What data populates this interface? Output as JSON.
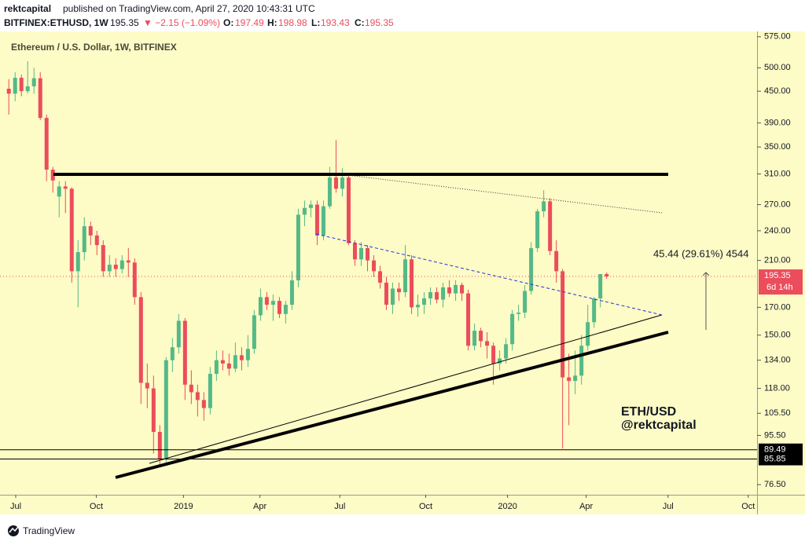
{
  "header": {
    "author": "rektcapital",
    "published": "published on TradingView.com, April 27, 2020 10:43:31 UTC",
    "symbol": "BITFINEX:ETHUSD, 1W",
    "change": "▼ −2.15 (−1.09%)",
    "o": "O:",
    "h": "H:",
    "l": "L:",
    "c": "C:"
  },
  "chart_data": {
    "type": "candlestick",
    "title": "Ethereum / U.S. Dollar, 1W, BITFINEX",
    "open": [
      455,
      445,
      478,
      450,
      460,
      477,
      399,
      316,
      280,
      293,
      290,
      200,
      218,
      245,
      235,
      225,
      200,
      206,
      202,
      210,
      208,
      178,
      121,
      118,
      97,
      86,
      134,
      142,
      160,
      120,
      116,
      112,
      108,
      126,
      134,
      132,
      129,
      137,
      134,
      141,
      164,
      178,
      172,
      175,
      165,
      172,
      192,
      258,
      266,
      270,
      235,
      268,
      305,
      290,
      305,
      227,
      211,
      222,
      210,
      200,
      190,
      172,
      185,
      182,
      211,
      170,
      172,
      177,
      182,
      176,
      186,
      181,
      188,
      181,
      143,
      153,
      146,
      143,
      132,
      135,
      144,
      165,
      166,
      183,
      222,
      262,
      274,
      219,
      200,
      124,
      122,
      125,
      143,
      159,
      177,
      197.49
    ],
    "high": [
      475,
      490,
      485,
      515,
      500,
      490,
      405,
      320,
      300,
      300,
      292,
      230,
      255,
      250,
      240,
      230,
      215,
      212,
      215,
      222,
      212,
      182,
      132,
      125,
      100,
      136,
      148,
      165,
      162,
      128,
      120,
      116,
      130,
      140,
      140,
      138,
      145,
      142,
      150,
      168,
      185,
      182,
      180,
      178,
      175,
      200,
      265,
      275,
      275,
      275,
      275,
      320,
      361,
      318,
      310,
      230,
      228,
      225,
      215,
      205,
      195,
      190,
      190,
      225,
      215,
      180,
      182,
      186,
      186,
      190,
      192,
      192,
      190,
      184,
      158,
      155,
      152,
      145,
      140,
      148,
      168,
      172,
      188,
      228,
      265,
      288,
      278,
      230,
      202,
      138,
      140,
      150,
      172,
      178,
      197,
      198.98
    ],
    "low": [
      405,
      430,
      440,
      445,
      445,
      395,
      300,
      285,
      255,
      260,
      190,
      170,
      210,
      225,
      215,
      195,
      195,
      195,
      198,
      195,
      172,
      110,
      108,
      88,
      83,
      84,
      127,
      138,
      112,
      110,
      104,
      102,
      105,
      122,
      128,
      125,
      127,
      128,
      130,
      138,
      160,
      168,
      160,
      162,
      158,
      168,
      186,
      245,
      255,
      225,
      230,
      265,
      285,
      280,
      225,
      205,
      205,
      200,
      195,
      185,
      168,
      165,
      175,
      178,
      165,
      163,
      165,
      172,
      173,
      170,
      178,
      175,
      175,
      140,
      140,
      142,
      135,
      120,
      128,
      132,
      140,
      160,
      162,
      180,
      218,
      255,
      215,
      190,
      90,
      100,
      115,
      120,
      140,
      155,
      170,
      193.43
    ],
    "close": [
      445,
      478,
      450,
      460,
      477,
      399,
      316,
      301,
      293,
      290,
      200,
      218,
      245,
      235,
      225,
      200,
      206,
      202,
      210,
      208,
      178,
      121,
      118,
      97,
      86,
      134,
      142,
      160,
      120,
      116,
      112,
      108,
      126,
      134,
      132,
      129,
      137,
      134,
      141,
      164,
      178,
      172,
      175,
      165,
      172,
      192,
      258,
      266,
      270,
      235,
      268,
      305,
      290,
      305,
      227,
      211,
      222,
      210,
      200,
      190,
      172,
      185,
      182,
      211,
      170,
      172,
      177,
      182,
      176,
      186,
      181,
      188,
      181,
      143,
      153,
      146,
      143,
      132,
      135,
      144,
      165,
      166,
      183,
      222,
      262,
      274,
      219,
      200,
      124,
      122,
      125,
      143,
      159,
      177,
      197.49,
      195.35
    ],
    "up_color": "#53b987",
    "down_color": "#eb4d5c",
    "xlim": [
      -1.4,
      118.9
    ],
    "xticks": [
      {
        "value": 1.1,
        "label": "Jul"
      },
      {
        "value": 13.9,
        "label": "Oct"
      },
      {
        "value": 27.75,
        "label": "2019"
      },
      {
        "value": 39.9,
        "label": "Apr"
      },
      {
        "value": 52.6,
        "label": "Jul"
      },
      {
        "value": 66.25,
        "label": "Oct"
      },
      {
        "value": 79.25,
        "label": "2020"
      },
      {
        "value": 91.75,
        "label": "Apr"
      },
      {
        "value": 104.75,
        "label": "Jul"
      },
      {
        "value": 117.5,
        "label": "Oct"
      }
    ],
    "ylim": [
      73.1,
      589
    ],
    "log_scale": true,
    "yticks": [
      {
        "value": 575,
        "label": "575.00"
      },
      {
        "value": 500,
        "label": "500.00"
      },
      {
        "value": 450,
        "label": "450.00"
      },
      {
        "value": 390,
        "label": "390.00"
      },
      {
        "value": 350,
        "label": "350.00"
      },
      {
        "value": 310,
        "label": "310.00"
      },
      {
        "value": 270,
        "label": "270.00"
      },
      {
        "value": 240,
        "label": "240.00"
      },
      {
        "value": 210,
        "label": "210.00"
      },
      {
        "value": 170,
        "label": "170.00"
      },
      {
        "value": 150,
        "label": "150.00"
      },
      {
        "value": 134,
        "label": "134.00"
      },
      {
        "value": 118,
        "label": "118.00"
      },
      {
        "value": 105.5,
        "label": "105.50"
      },
      {
        "value": 95.5,
        "label": "95.50"
      },
      {
        "value": 76.5,
        "label": "76.50"
      }
    ],
    "levels": [
      89.49,
      85.85
    ],
    "countdown": "6d 14h",
    "annotations": [
      "45.44 (29.61%) 4544",
      "ETH/USD",
      "@rektcapital"
    ]
  },
  "footer": {
    "brand": "TradingView"
  }
}
